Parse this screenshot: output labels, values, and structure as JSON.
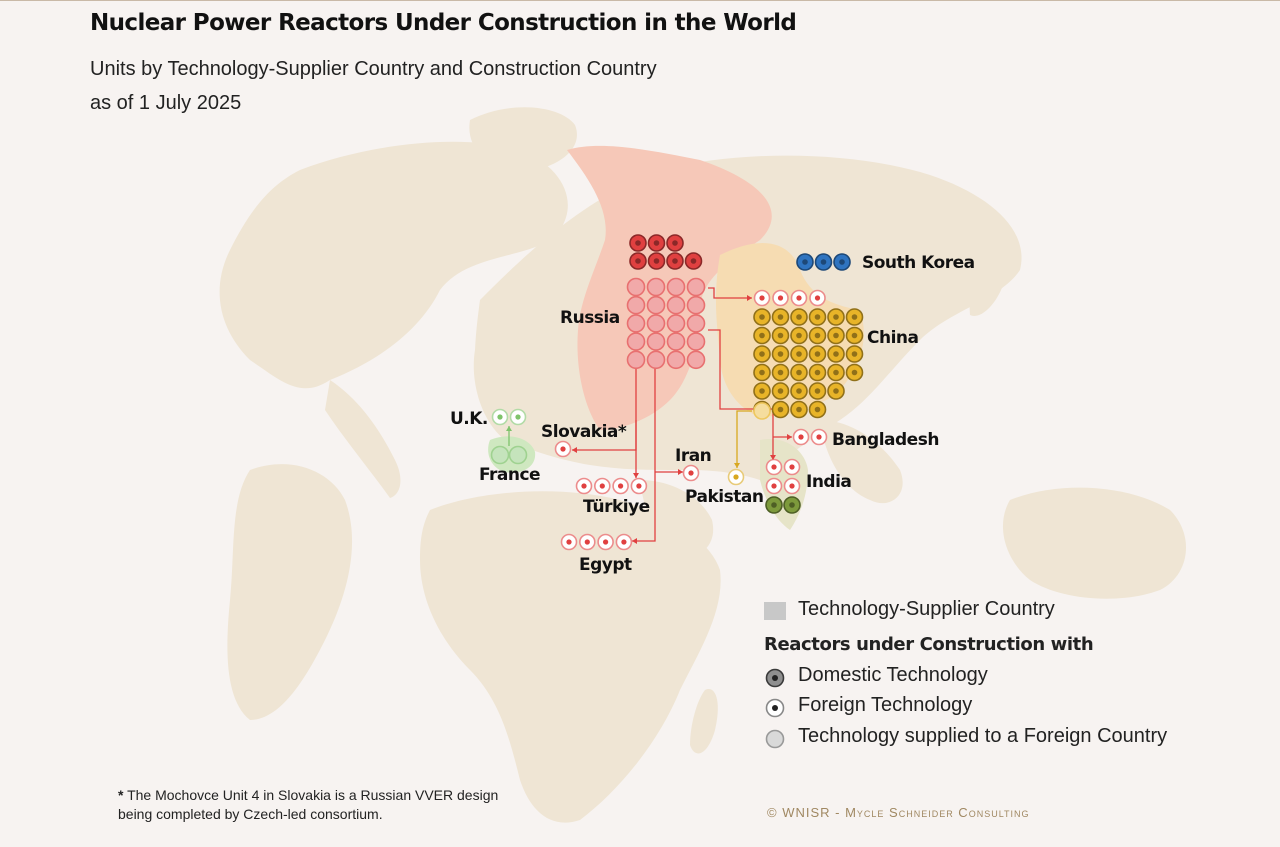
{
  "title": "Nuclear Power Reactors Under Construction in the World",
  "subtitle_line1": "Units by Technology-Supplier Country and Construction Country",
  "subtitle_line2": "as of 1 July 2025",
  "colors": {
    "background": "#f7f3f1",
    "land": "#efe5d4",
    "russia": "#e04040",
    "russia_region": "#f6c8b8",
    "china": "#e8b428",
    "china_region": "#f6dcb2",
    "south_korea": "#2f74c0",
    "france": "#7fc36b",
    "france_region": "#cfe8c0",
    "india": "#7d9a3c",
    "pakistan": "#d8a820"
  },
  "countries": [
    {
      "name": "Russia",
      "supplier": true,
      "domestic_units": 7,
      "supplied_to_foreign_units": 20,
      "foreign_units": 0
    },
    {
      "name": "China",
      "supplier": true,
      "domestic_units": 33,
      "supplied_to_foreign_units": 1,
      "foreign_units": 4
    },
    {
      "name": "South Korea",
      "supplier": true,
      "domestic_units": 3,
      "supplied_to_foreign_units": 0,
      "foreign_units": 0
    },
    {
      "name": "France",
      "supplier": true,
      "domestic_units": 0,
      "supplied_to_foreign_units": 2,
      "foreign_units": 0
    },
    {
      "name": "U.K.",
      "foreign_units": 2,
      "supplier_country": "France"
    },
    {
      "name": "Slovakia*",
      "foreign_units": 1,
      "supplier_country": "Russia"
    },
    {
      "name": "Türkiye",
      "foreign_units": 4,
      "supplier_country": "Russia"
    },
    {
      "name": "Egypt",
      "foreign_units": 4,
      "supplier_country": "Russia"
    },
    {
      "name": "Iran",
      "foreign_units": 1,
      "supplier_country": "Russia"
    },
    {
      "name": "Bangladesh",
      "foreign_units": 2,
      "supplier_country": "Russia"
    },
    {
      "name": "India",
      "domestic_units": 2,
      "foreign_units": 4,
      "supplier_country": "Russia"
    },
    {
      "name": "Pakistan",
      "foreign_units": 1,
      "supplier_country": "China"
    }
  ],
  "legend": {
    "supplier_country": "Technology-Supplier Country",
    "heading": "Reactors under Construction with",
    "domestic": "Domestic Technology",
    "foreign": "Foreign Technology",
    "supplied": "Technology supplied to a Foreign Country"
  },
  "footnote_marker": "*",
  "footnote_line1": " The Mochovce Unit 4 in Slovakia is a Russian VVER design",
  "footnote_line2": "being completed by Czech-led consortium.",
  "credit": "© WNISR - Mycle Schneider Consulting"
}
